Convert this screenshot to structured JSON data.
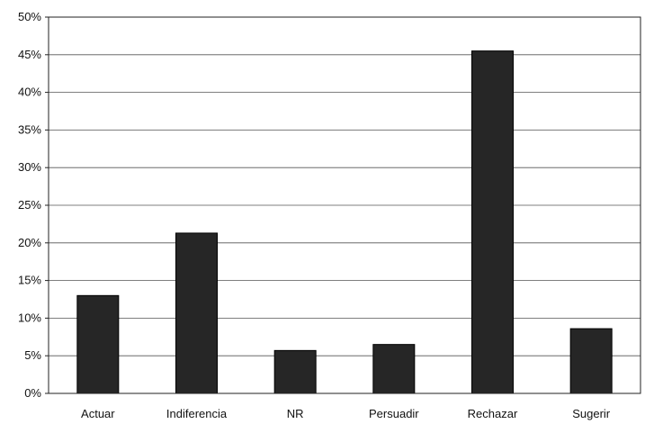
{
  "chart_data": {
    "type": "bar",
    "categories": [
      "Actuar",
      "Indiferencia",
      "NR",
      "Persuadir",
      "Rechazar",
      "Sugerir"
    ],
    "values": [
      13,
      21.3,
      5.7,
      6.5,
      45.5,
      8.6
    ],
    "title": "",
    "xlabel": "",
    "ylabel": "",
    "ylim": [
      0,
      50
    ],
    "yticks": [
      "0%",
      "5%",
      "10%",
      "15%",
      "20%",
      "25%",
      "30%",
      "35%",
      "40%",
      "45%",
      "50%"
    ],
    "grid": true,
    "legend": "none",
    "bar_color": "#262626"
  }
}
